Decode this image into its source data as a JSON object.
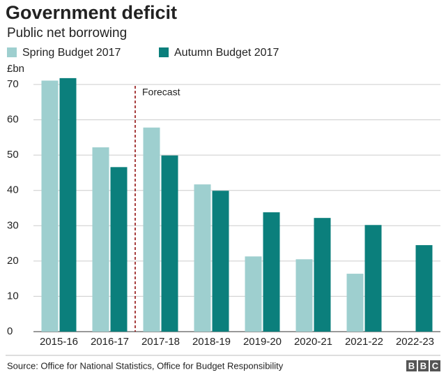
{
  "chart_data": {
    "type": "bar",
    "title": "Government deficit",
    "subtitle": "Public net borrowing",
    "y_label": "£bn",
    "categories": [
      "2015-16",
      "2016-17",
      "2017-18",
      "2018-19",
      "2019-20",
      "2020-21",
      "2021-22",
      "2022-23"
    ],
    "series": [
      {
        "name": "Spring Budget 2017",
        "color": "#9ecfcf",
        "values": [
          71.1,
          52.2,
          57.8,
          41.7,
          21.3,
          20.5,
          16.4,
          null
        ]
      },
      {
        "name": "Autumn Budget 2017",
        "color": "#0b7f7c",
        "values": [
          71.8,
          46.6,
          49.9,
          39.9,
          33.8,
          32.2,
          30.2,
          24.5
        ]
      }
    ],
    "ylim": [
      0,
      70
    ],
    "yticks": [
      0,
      10,
      20,
      30,
      40,
      50,
      60,
      70
    ],
    "grid": true,
    "annotations": [
      {
        "text": "Forecast"
      }
    ],
    "source": "Source: Office for National Statistics, Office for Budget Responsibility",
    "logo": [
      "B",
      "B",
      "C"
    ]
  }
}
